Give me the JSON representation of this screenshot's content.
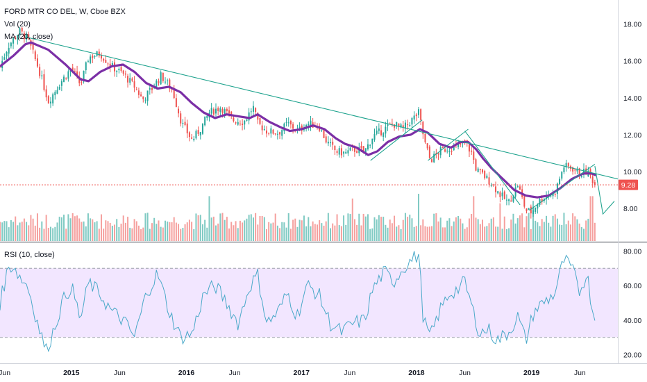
{
  "legend": {
    "symbol_line": "FORD MTR CO DEL, W, Cboe BZX",
    "vol_line": "Vol (20)",
    "ma_line": "MA (20, close)",
    "rsi_line": "RSI (10, close)"
  },
  "colors": {
    "up": "#26a69a",
    "down": "#ef5350",
    "vol_up": "#7fcac3",
    "vol_down": "#f5a09e",
    "ma": "#7b2fa6",
    "trendline": "#1fa38e",
    "rsi": "#4aa9c9",
    "rsi_band": "#f2e6ff",
    "last_price": "#ef5350"
  },
  "last_price": {
    "value": 9.28,
    "label": "9.28"
  },
  "chart_data": [
    {
      "type": "candlestick",
      "title": "FORD MTR CO DEL, W, Cboe BZX",
      "ylim": [
        6.2,
        19.3
      ],
      "y_ticks": [
        "8.00",
        "10.00",
        "12.00",
        "14.00",
        "16.00",
        "18.00"
      ],
      "y_tick_values": [
        8,
        10,
        12,
        14,
        16,
        18
      ],
      "x_ticks": [
        "Jun",
        "2015",
        "Jun",
        "2016",
        "Jun",
        "2017",
        "Jun",
        "2018",
        "Jun",
        "2019",
        "Jun"
      ],
      "x_tick_values": [
        2014.42,
        2015.0,
        2015.42,
        2016.0,
        2016.42,
        2017.0,
        2017.42,
        2018.0,
        2018.42,
        2019.0,
        2019.42
      ],
      "xlim": [
        2014.38,
        2019.75
      ],
      "price_path": [
        [
          2014.38,
          15.7
        ],
        [
          2014.45,
          16.8
        ],
        [
          2014.55,
          17.6
        ],
        [
          2014.62,
          17.2
        ],
        [
          2014.72,
          15.5
        ],
        [
          2014.8,
          13.8
        ],
        [
          2014.9,
          14.8
        ],
        [
          2015.0,
          15.6
        ],
        [
          2015.08,
          14.7
        ],
        [
          2015.15,
          16.2
        ],
        [
          2015.25,
          16.4
        ],
        [
          2015.35,
          15.7
        ],
        [
          2015.45,
          15.3
        ],
        [
          2015.55,
          14.6
        ],
        [
          2015.62,
          13.9
        ],
        [
          2015.7,
          14.5
        ],
        [
          2015.78,
          15.2
        ],
        [
          2015.88,
          14.4
        ],
        [
          2015.96,
          12.6
        ],
        [
          2016.05,
          11.7
        ],
        [
          2016.12,
          12.3
        ],
        [
          2016.2,
          13.2
        ],
        [
          2016.3,
          13.5
        ],
        [
          2016.4,
          12.8
        ],
        [
          2016.5,
          12.7
        ],
        [
          2016.58,
          13.5
        ],
        [
          2016.62,
          12.6
        ],
        [
          2016.7,
          12.2
        ],
        [
          2016.8,
          12.1
        ],
        [
          2016.88,
          12.6
        ],
        [
          2016.97,
          12.2
        ],
        [
          2017.05,
          12.6
        ],
        [
          2017.15,
          12.5
        ],
        [
          2017.22,
          11.6
        ],
        [
          2017.3,
          11.1
        ],
        [
          2017.38,
          11.0
        ],
        [
          2017.45,
          11.2
        ],
        [
          2017.55,
          11.1
        ],
        [
          2017.62,
          11.9
        ],
        [
          2017.72,
          12.3
        ],
        [
          2017.8,
          12.6
        ],
        [
          2017.88,
          12.3
        ],
        [
          2017.96,
          12.8
        ],
        [
          2018.02,
          13.2
        ],
        [
          2018.07,
          11.6
        ],
        [
          2018.12,
          10.6
        ],
        [
          2018.2,
          11.1
        ],
        [
          2018.28,
          11.3
        ],
        [
          2018.35,
          11.3
        ],
        [
          2018.42,
          11.6
        ],
        [
          2018.48,
          11.0
        ],
        [
          2018.52,
          10.1
        ],
        [
          2018.58,
          9.8
        ],
        [
          2018.65,
          9.4
        ],
        [
          2018.72,
          8.8
        ],
        [
          2018.8,
          8.3
        ],
        [
          2018.88,
          9.3
        ],
        [
          2018.95,
          7.9
        ],
        [
          2019.0,
          7.8
        ],
        [
          2019.05,
          8.3
        ],
        [
          2019.12,
          8.7
        ],
        [
          2019.2,
          8.8
        ],
        [
          2019.28,
          10.3
        ],
        [
          2019.35,
          10.2
        ],
        [
          2019.42,
          9.9
        ],
        [
          2019.48,
          10.0
        ],
        [
          2019.52,
          9.7
        ],
        [
          2019.55,
          9.28
        ]
      ],
      "ma20": [
        [
          2014.38,
          15.7
        ],
        [
          2014.5,
          16.3
        ],
        [
          2014.6,
          16.9
        ],
        [
          2014.65,
          17.0
        ],
        [
          2014.8,
          16.6
        ],
        [
          2014.95,
          15.8
        ],
        [
          2015.08,
          15.0
        ],
        [
          2015.15,
          14.9
        ],
        [
          2015.25,
          15.4
        ],
        [
          2015.35,
          15.7
        ],
        [
          2015.45,
          15.8
        ],
        [
          2015.55,
          15.4
        ],
        [
          2015.65,
          14.8
        ],
        [
          2015.75,
          14.5
        ],
        [
          2015.85,
          14.6
        ],
        [
          2015.95,
          14.3
        ],
        [
          2016.05,
          13.7
        ],
        [
          2016.15,
          13.2
        ],
        [
          2016.25,
          12.9
        ],
        [
          2016.35,
          13.1
        ],
        [
          2016.45,
          13.0
        ],
        [
          2016.55,
          12.9
        ],
        [
          2016.62,
          13.1
        ],
        [
          2016.72,
          12.7
        ],
        [
          2016.82,
          12.4
        ],
        [
          2016.9,
          12.2
        ],
        [
          2017.0,
          12.3
        ],
        [
          2017.1,
          12.5
        ],
        [
          2017.2,
          12.3
        ],
        [
          2017.3,
          11.8
        ],
        [
          2017.38,
          11.5
        ],
        [
          2017.48,
          11.3
        ],
        [
          2017.58,
          10.9
        ],
        [
          2017.66,
          11.1
        ],
        [
          2017.75,
          11.6
        ],
        [
          2017.85,
          11.9
        ],
        [
          2017.95,
          12.0
        ],
        [
          2018.03,
          12.3
        ],
        [
          2018.1,
          12.1
        ],
        [
          2018.2,
          11.5
        ],
        [
          2018.3,
          11.3
        ],
        [
          2018.38,
          11.6
        ],
        [
          2018.45,
          11.6
        ],
        [
          2018.52,
          11.2
        ],
        [
          2018.58,
          10.7
        ],
        [
          2018.65,
          10.2
        ],
        [
          2018.75,
          9.6
        ],
        [
          2018.85,
          9.0
        ],
        [
          2018.95,
          8.7
        ],
        [
          2019.05,
          8.6
        ],
        [
          2019.15,
          8.7
        ],
        [
          2019.25,
          9.1
        ],
        [
          2019.35,
          9.6
        ],
        [
          2019.45,
          9.9
        ],
        [
          2019.52,
          9.9
        ],
        [
          2019.56,
          9.8
        ]
      ],
      "trendlines": [
        {
          "name": "long_downtrend",
          "points": [
            [
              2014.6,
              17.3
            ],
            [
              2019.75,
              9.6
            ]
          ]
        },
        {
          "name": "channel_2018",
          "points": [
            [
              2017.6,
              10.6
            ],
            [
              2018.05,
              12.8
            ]
          ]
        },
        {
          "name": "channel_2018b",
          "points": [
            [
              2018.1,
              10.6
            ],
            [
              2018.45,
              12.3
            ]
          ]
        },
        {
          "name": "channel_2018c",
          "points": [
            [
              2018.42,
              12.2
            ],
            [
              2018.9,
              8.2
            ]
          ]
        },
        {
          "name": "channel_2019",
          "points": [
            [
              2018.98,
              7.9
            ],
            [
              2019.55,
              10.4
            ]
          ]
        },
        {
          "name": "projection",
          "points": [
            [
              2019.55,
              10.3
            ],
            [
              2019.62,
              7.7
            ],
            [
              2019.72,
              8.4
            ]
          ]
        }
      ]
    },
    {
      "type": "bar",
      "title": "Vol (20)",
      "ylim": [
        0,
        1
      ],
      "x": [
        2014.38,
        2019.55
      ],
      "spike_dates": [
        2016.2,
        2017.45,
        2018.02,
        2018.5,
        2018.72,
        2019.02,
        2019.52
      ],
      "spike_values": [
        0.95,
        0.9,
        1.0,
        0.95,
        0.8,
        0.85,
        0.95
      ]
    },
    {
      "type": "line",
      "title": "RSI (10, close)",
      "ylim": [
        15,
        85
      ],
      "y_ticks": [
        "20.00",
        "40.00",
        "60.00",
        "80.00"
      ],
      "y_tick_values": [
        20,
        40,
        60,
        80
      ],
      "band": [
        30,
        70
      ],
      "points": [
        [
          2014.38,
          50
        ],
        [
          2014.45,
          70
        ],
        [
          2014.5,
          72
        ],
        [
          2014.55,
          65
        ],
        [
          2014.62,
          60
        ],
        [
          2014.7,
          40
        ],
        [
          2014.78,
          22
        ],
        [
          2014.85,
          35
        ],
        [
          2014.92,
          50
        ],
        [
          2015.0,
          60
        ],
        [
          2015.08,
          40
        ],
        [
          2015.15,
          62
        ],
        [
          2015.25,
          55
        ],
        [
          2015.35,
          45
        ],
        [
          2015.45,
          40
        ],
        [
          2015.55,
          30
        ],
        [
          2015.65,
          55
        ],
        [
          2015.75,
          67
        ],
        [
          2015.85,
          45
        ],
        [
          2015.95,
          30
        ],
        [
          2016.05,
          32
        ],
        [
          2016.15,
          55
        ],
        [
          2016.25,
          60
        ],
        [
          2016.35,
          50
        ],
        [
          2016.45,
          38
        ],
        [
          2016.55,
          60
        ],
        [
          2016.62,
          66
        ],
        [
          2016.7,
          38
        ],
        [
          2016.8,
          45
        ],
        [
          2016.88,
          56
        ],
        [
          2016.96,
          42
        ],
        [
          2017.05,
          60
        ],
        [
          2017.15,
          55
        ],
        [
          2017.25,
          38
        ],
        [
          2017.35,
          33
        ],
        [
          2017.45,
          38
        ],
        [
          2017.55,
          40
        ],
        [
          2017.62,
          58
        ],
        [
          2017.72,
          68
        ],
        [
          2017.8,
          62
        ],
        [
          2017.88,
          70
        ],
        [
          2017.96,
          75
        ],
        [
          2018.02,
          78
        ],
        [
          2018.06,
          40
        ],
        [
          2018.12,
          30
        ],
        [
          2018.2,
          45
        ],
        [
          2018.28,
          55
        ],
        [
          2018.36,
          58
        ],
        [
          2018.42,
          62
        ],
        [
          2018.48,
          48
        ],
        [
          2018.55,
          32
        ],
        [
          2018.62,
          35
        ],
        [
          2018.7,
          28
        ],
        [
          2018.8,
          33
        ],
        [
          2018.88,
          42
        ],
        [
          2018.95,
          28
        ],
        [
          2019.02,
          45
        ],
        [
          2019.1,
          50
        ],
        [
          2019.2,
          55
        ],
        [
          2019.28,
          75
        ],
        [
          2019.35,
          70
        ],
        [
          2019.42,
          56
        ],
        [
          2019.48,
          68
        ],
        [
          2019.52,
          50
        ],
        [
          2019.55,
          40
        ]
      ]
    }
  ]
}
